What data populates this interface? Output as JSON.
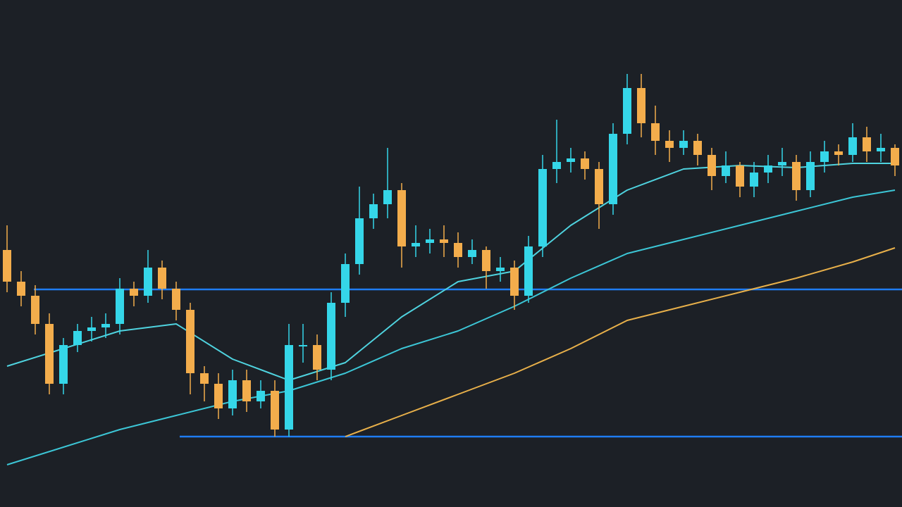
{
  "chart_data": {
    "type": "candlestick",
    "xlim": [
      -0.5,
      63.5
    ],
    "ylim": [
      0,
      720
    ],
    "up_color": "#35d6e8",
    "down_color": "#f3ad4c",
    "background": "#1c2026",
    "open": [
      365,
      320,
      300,
      260,
      175,
      230,
      250,
      255,
      260,
      310,
      300,
      340,
      310,
      280,
      190,
      175,
      140,
      180,
      150,
      165,
      110,
      230,
      230,
      195,
      290,
      345,
      410,
      430,
      450,
      370,
      375,
      380,
      375,
      355,
      365,
      335,
      340,
      300,
      370,
      480,
      490,
      495,
      480,
      430,
      530,
      595,
      545,
      520,
      510,
      520,
      500,
      470,
      485,
      455,
      475,
      485,
      490,
      450,
      490,
      505,
      500,
      525,
      505,
      510
    ],
    "close": [
      320,
      300,
      260,
      175,
      230,
      250,
      255,
      260,
      310,
      300,
      340,
      310,
      280,
      190,
      175,
      140,
      180,
      150,
      165,
      110,
      230,
      230,
      195,
      290,
      345,
      410,
      430,
      450,
      370,
      375,
      380,
      375,
      355,
      365,
      335,
      340,
      300,
      370,
      480,
      490,
      495,
      480,
      430,
      530,
      595,
      545,
      520,
      510,
      520,
      500,
      470,
      485,
      455,
      475,
      485,
      490,
      450,
      490,
      505,
      500,
      525,
      505,
      510,
      485
    ],
    "high": [
      400,
      335,
      315,
      275,
      240,
      260,
      270,
      275,
      325,
      320,
      365,
      350,
      320,
      290,
      200,
      190,
      195,
      195,
      180,
      180,
      260,
      260,
      245,
      305,
      360,
      455,
      445,
      510,
      460,
      400,
      395,
      400,
      390,
      380,
      370,
      355,
      350,
      385,
      500,
      550,
      510,
      505,
      490,
      545,
      615,
      615,
      570,
      535,
      535,
      530,
      510,
      505,
      490,
      490,
      500,
      510,
      500,
      505,
      520,
      515,
      545,
      540,
      530,
      515
    ],
    "low": [
      305,
      285,
      245,
      160,
      160,
      220,
      235,
      240,
      245,
      285,
      290,
      295,
      265,
      160,
      150,
      125,
      130,
      135,
      140,
      100,
      100,
      205,
      180,
      180,
      270,
      330,
      395,
      410,
      340,
      355,
      360,
      355,
      340,
      345,
      310,
      320,
      280,
      290,
      355,
      460,
      475,
      465,
      395,
      415,
      515,
      525,
      500,
      490,
      500,
      485,
      450,
      460,
      440,
      440,
      460,
      470,
      435,
      440,
      475,
      485,
      490,
      490,
      490,
      470
    ],
    "lines": [
      {
        "color": "#4fd3df",
        "x": [
          0,
          4,
          8,
          12,
          16,
          20,
          24,
          28,
          32,
          36,
          40,
          44,
          48,
          52,
          56,
          60,
          63
        ],
        "values": [
          200,
          225,
          250,
          260,
          210,
          180,
          205,
          270,
          320,
          335,
          400,
          450,
          480,
          485,
          482,
          488,
          488
        ]
      },
      {
        "color": "#3cc6d6",
        "x": [
          0,
          4,
          8,
          12,
          16,
          20,
          24,
          28,
          32,
          36,
          40,
          44,
          48,
          52,
          56,
          60,
          63
        ],
        "values": [
          60,
          85,
          110,
          130,
          150,
          165,
          190,
          225,
          250,
          285,
          325,
          360,
          380,
          400,
          420,
          440,
          450
        ]
      },
      {
        "color": "#e8b04a",
        "x": [
          24,
          28,
          32,
          36,
          40,
          44,
          48,
          52,
          56,
          60,
          63
        ],
        "values": [
          100,
          130,
          160,
          190,
          225,
          265,
          285,
          305,
          325,
          348,
          368
        ]
      }
    ],
    "level_color": "#1f7cf2",
    "levels": [
      {
        "value": 309,
        "x_start": 1.9
      },
      {
        "value": 100,
        "x_start": 12.25
      }
    ]
  }
}
